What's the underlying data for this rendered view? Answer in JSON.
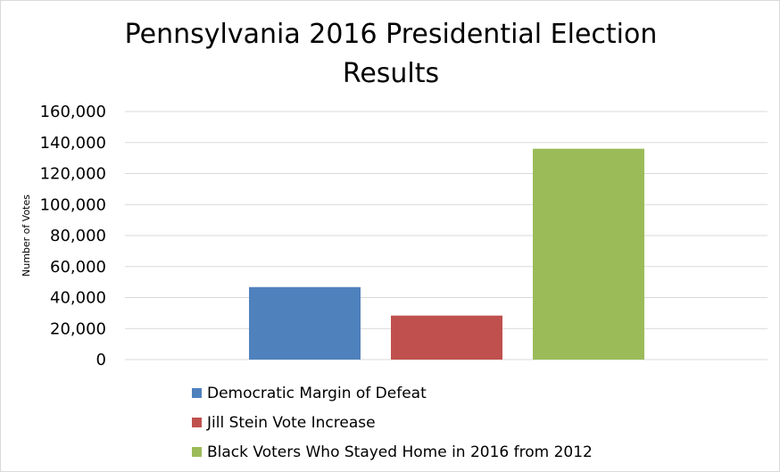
{
  "chart_data": {
    "type": "bar",
    "title_lines": [
      "Pennsylvania 2016 Presidential Election",
      "Results"
    ],
    "xlabel": "",
    "ylabel": "Number of Votes",
    "ylim": [
      0,
      160000
    ],
    "yticks": [
      "0",
      "20,000",
      "40,000",
      "60,000",
      "80,000",
      "100,000",
      "120,000",
      "140,000",
      "160,000"
    ],
    "grid": true,
    "legend_position": "bottom",
    "series": [
      {
        "name": "Democratic Margin of Defeat",
        "value": 46765,
        "color": "#4f81bd"
      },
      {
        "name": "Jill Stein Vote Increase",
        "value": 28372,
        "color": "#c0504d"
      },
      {
        "name": "Black Voters Who Stayed Home in 2016 from 2012",
        "value": 136000,
        "color": "#9bbb59"
      }
    ]
  }
}
